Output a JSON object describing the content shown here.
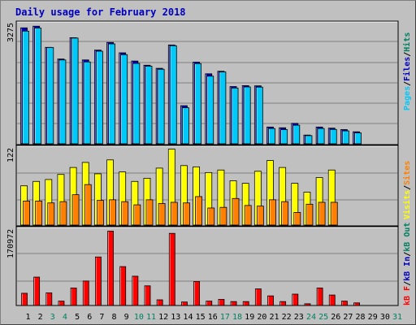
{
  "title": "Daily usage for February 2018",
  "colors": {
    "pages": "#00c8f8",
    "files": "#0000c0",
    "hits": "#008060",
    "visits": "#ffff00",
    "sites": "#ff8000",
    "kbin": "#0000c0",
    "kbout": "#008060",
    "kbf": "#ff0000",
    "panel": "#c0c0c0",
    "grid": "#808080"
  },
  "chart_data": [
    {
      "type": "bar",
      "title": "Daily usage for February 2018",
      "categories": [
        "1",
        "2",
        "3",
        "4",
        "5",
        "6",
        "7",
        "8",
        "9",
        "10",
        "11",
        "12",
        "13",
        "14",
        "15",
        "16",
        "17",
        "18",
        "19",
        "20",
        "21",
        "22",
        "23",
        "24",
        "25",
        "26",
        "27",
        "28",
        "29",
        "30",
        "31"
      ],
      "weekend_days": [
        "3",
        "4",
        "10",
        "11",
        "17",
        "18",
        "24",
        "25",
        "31"
      ],
      "ymax_label": "3275",
      "ymax": 3275,
      "axis_labels": [
        {
          "text": "Pages",
          "color": "#00c8f8"
        },
        {
          "text": "/",
          "color": "#000000"
        },
        {
          "text": "Files",
          "color": "#0000c0"
        },
        {
          "text": "/",
          "color": "#000000"
        },
        {
          "text": "Hits",
          "color": "#008060"
        }
      ],
      "series": [
        {
          "name": "Hits",
          "color": "#008060",
          "values": [
            3180,
            3225,
            2645,
            2325,
            2910,
            2300,
            2570,
            2780,
            2495,
            2270,
            2155,
            2070,
            2710,
            1045,
            2240,
            1920,
            1990,
            1570,
            1595,
            1590,
            460,
            440,
            560,
            240,
            460,
            430,
            390,
            330,
            0,
            0,
            0
          ]
        },
        {
          "name": "Files",
          "color": "#0000c0",
          "values": [
            3180,
            3225,
            2645,
            2325,
            2910,
            2300,
            2570,
            2780,
            2495,
            2270,
            2155,
            2070,
            2710,
            1045,
            2240,
            1920,
            1990,
            1570,
            1595,
            1590,
            460,
            440,
            560,
            240,
            460,
            430,
            390,
            330,
            0,
            0,
            0
          ]
        },
        {
          "name": "Pages",
          "color": "#00c8f8",
          "values": [
            3090,
            3175,
            2640,
            2300,
            2900,
            2245,
            2540,
            2740,
            2445,
            2205,
            2130,
            2045,
            2690,
            990,
            2200,
            1855,
            1970,
            1530,
            1560,
            1555,
            420,
            390,
            510,
            225,
            420,
            395,
            355,
            300,
            0,
            0,
            0
          ]
        }
      ]
    },
    {
      "type": "bar",
      "categories": [
        "1",
        "2",
        "3",
        "4",
        "5",
        "6",
        "7",
        "8",
        "9",
        "10",
        "11",
        "12",
        "13",
        "14",
        "15",
        "16",
        "17",
        "18",
        "19",
        "20",
        "21",
        "22",
        "23",
        "24",
        "25",
        "26",
        "27",
        "28",
        "29",
        "30",
        "31"
      ],
      "ymax_label": "122",
      "ymax": 122,
      "axis_labels": [
        {
          "text": "Visits",
          "color": "#ffff00"
        },
        {
          "text": "/",
          "color": "#000000"
        },
        {
          "text": "Sites",
          "color": "#ff8000"
        }
      ],
      "series": [
        {
          "name": "Visits",
          "color": "#ffff00",
          "values": [
            62,
            69,
            72,
            80,
            91,
            99,
            81,
            103,
            84,
            69,
            74,
            90,
            120,
            94,
            92,
            83,
            87,
            70,
            66,
            85,
            102,
            91,
            66,
            52,
            75,
            87,
            0,
            0,
            0,
            0,
            0
          ],
          "values_fix": true
        },
        {
          "name": "Sites",
          "color": "#ff8000",
          "values": [
            38,
            38,
            35,
            37,
            48,
            64,
            39,
            40,
            37,
            32,
            40,
            34,
            36,
            35,
            45,
            27,
            28,
            42,
            31,
            30,
            40,
            37,
            20,
            33,
            36,
            36,
            0,
            0,
            0,
            0,
            0
          ]
        }
      ]
    },
    {
      "type": "bar",
      "categories": [
        "1",
        "2",
        "3",
        "4",
        "5",
        "6",
        "7",
        "8",
        "9",
        "10",
        "11",
        "12",
        "13",
        "14",
        "15",
        "16",
        "17",
        "18",
        "19",
        "20",
        "21",
        "22",
        "23",
        "24",
        "25",
        "26",
        "27",
        "28",
        "29",
        "30",
        "31"
      ],
      "ymax_label": "170972",
      "ymax": 170972,
      "axis_labels": [
        {
          "text": "kB F",
          "color": "#ff0000"
        },
        {
          "text": "/",
          "color": "#000000"
        },
        {
          "text": "kB In",
          "color": "#0000c0"
        },
        {
          "text": "/",
          "color": "#000000"
        },
        {
          "text": "kB Out",
          "color": "#008060"
        }
      ],
      "series": [
        {
          "name": "kB F",
          "color": "#ff0000",
          "values": [
            28000,
            65000,
            29000,
            10000,
            40000,
            56000,
            111000,
            170000,
            89000,
            67000,
            45000,
            13000,
            165000,
            8000,
            55000,
            10000,
            14000,
            9000,
            9000,
            38000,
            22000,
            9000,
            26000,
            4000,
            40000,
            24000,
            10000,
            6000,
            0,
            0,
            0
          ]
        }
      ]
    }
  ]
}
